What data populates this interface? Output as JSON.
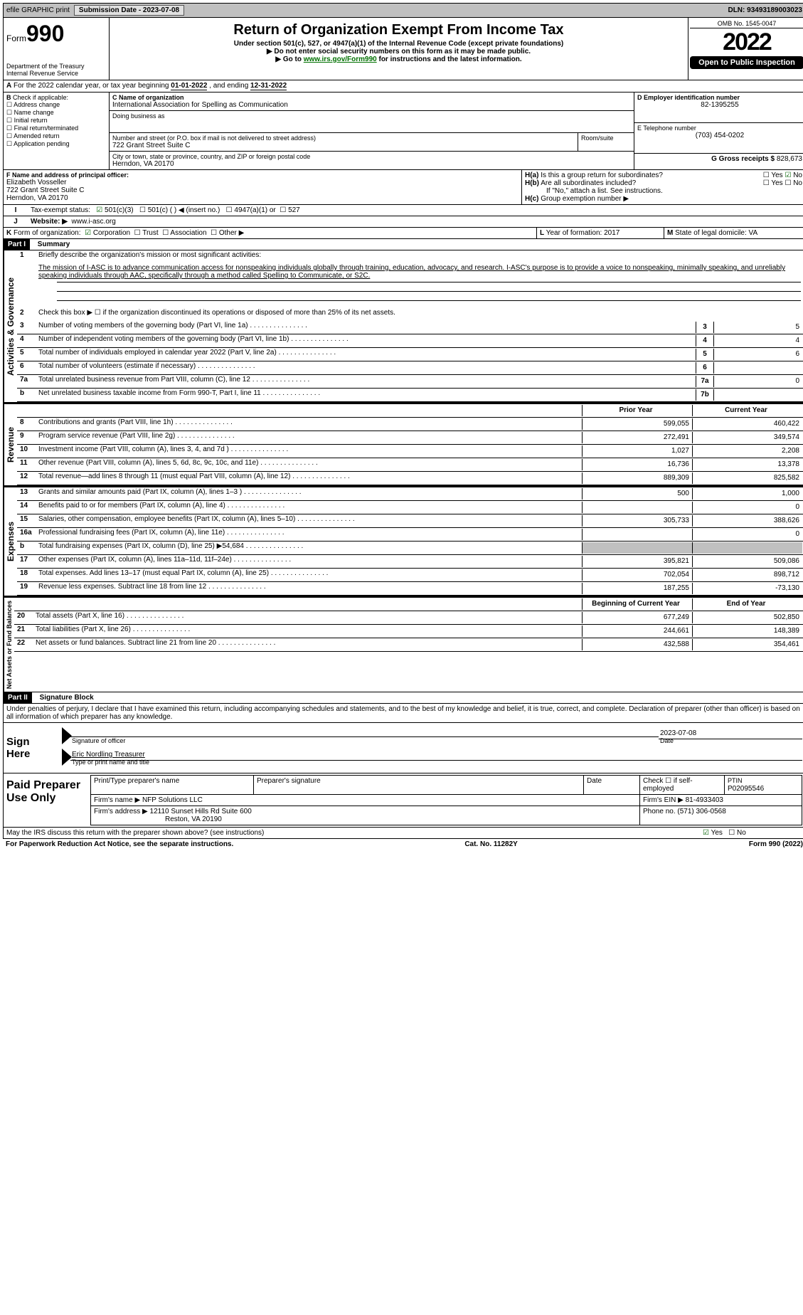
{
  "topbar": {
    "efile": "efile GRAPHIC print",
    "submission_label": "Submission Date - 2023-07-08",
    "dln": "DLN: 93493189003023"
  },
  "header": {
    "form_word": "Form",
    "form_num": "990",
    "title": "Return of Organization Exempt From Income Tax",
    "subtitle": "Under section 501(c), 527, or 4947(a)(1) of the Internal Revenue Code (except private foundations)",
    "warn": "Do not enter social security numbers on this form as it may be made public.",
    "goto_pre": "Go to ",
    "goto_link": "www.irs.gov/Form990",
    "goto_post": " for instructions and the latest information.",
    "dept1": "Department of the Treasury",
    "dept2": "Internal Revenue Service",
    "omb": "OMB No. 1545-0047",
    "year": "2022",
    "open": "Open to Public Inspection"
  },
  "A": {
    "text_pre": "For the 2022 calendar year, or tax year beginning ",
    "begin": "01-01-2022",
    "mid": " , and ending ",
    "end": "12-31-2022"
  },
  "B": {
    "label": "Check if applicable:",
    "items": [
      "Address change",
      "Name change",
      "Initial return",
      "Final return/terminated",
      "Amended return",
      "Application pending"
    ]
  },
  "C": {
    "name_label": "C Name of organization",
    "name": "International Association for Spelling as Communication",
    "dba_label": "Doing business as",
    "street_label": "Number and street (or P.O. box if mail is not delivered to street address)",
    "room_label": "Room/suite",
    "street": "722 Grant Street Suite C",
    "city_label": "City or town, state or province, country, and ZIP or foreign postal code",
    "city": "Herndon, VA  20170"
  },
  "D": {
    "label": "D Employer identification number",
    "val": "82-1395255"
  },
  "E": {
    "label": "E Telephone number",
    "val": "(703) 454-0202"
  },
  "G": {
    "label": "G Gross receipts $",
    "val": "828,673"
  },
  "F": {
    "label": "F Name and address of principal officer:",
    "name": "Elizabeth Vosseller",
    "addr1": "722 Grant Street Suite C",
    "addr2": "Herndon, VA  20170"
  },
  "H": {
    "a": "Is this a group return for subordinates?",
    "a_yes": "Yes",
    "a_no": "No",
    "b": "Are all subordinates included?",
    "b_note": "If \"No,\" attach a list. See instructions.",
    "c": "Group exemption number ▶"
  },
  "I": {
    "label": "Tax-exempt status:",
    "o1": "501(c)(3)",
    "o2": "501(c) (  ) ◀ (insert no.)",
    "o3": "4947(a)(1) or",
    "o4": "527"
  },
  "J": {
    "label": "Website: ▶",
    "val": "www.i-asc.org"
  },
  "K": {
    "label": "Form of organization:",
    "corp": "Corporation",
    "trust": "Trust",
    "assoc": "Association",
    "other": "Other ▶"
  },
  "L": {
    "label": "Year of formation:",
    "val": "2017"
  },
  "M": {
    "label": "State of legal domicile:",
    "val": "VA"
  },
  "part1": {
    "hdr": "Part I",
    "title": "Summary",
    "l1_label": "Briefly describe the organization's mission or most significant activities:",
    "l1_text": "The mission of I-ASC is to advance communication access for nonspeaking individuals globally through training, education, advocacy, and research. I-ASC's purpose is to provide a voice to nonspeaking, minimally speaking, and unreliably speaking individuals through AAC, specifically through a method called Spelling to Communicate, or S2C.",
    "l2": "Check this box ▶ ☐ if the organization discontinued its operations or disposed of more than 25% of its net assets.",
    "lines_gov": [
      {
        "n": "3",
        "d": "Number of voting members of the governing body (Part VI, line 1a)",
        "box": "3",
        "v": "5"
      },
      {
        "n": "4",
        "d": "Number of independent voting members of the governing body (Part VI, line 1b)",
        "box": "4",
        "v": "4"
      },
      {
        "n": "5",
        "d": "Total number of individuals employed in calendar year 2022 (Part V, line 2a)",
        "box": "5",
        "v": "6"
      },
      {
        "n": "6",
        "d": "Total number of volunteers (estimate if necessary)",
        "box": "6",
        "v": ""
      },
      {
        "n": "7a",
        "d": "Total unrelated business revenue from Part VIII, column (C), line 12",
        "box": "7a",
        "v": "0"
      },
      {
        "n": "b",
        "d": "Net unrelated business taxable income from Form 990-T, Part I, line 11",
        "box": "7b",
        "v": ""
      }
    ],
    "col_prior": "Prior Year",
    "col_curr": "Current Year",
    "revenue": [
      {
        "n": "8",
        "d": "Contributions and grants (Part VIII, line 1h)",
        "p": "599,055",
        "c": "460,422"
      },
      {
        "n": "9",
        "d": "Program service revenue (Part VIII, line 2g)",
        "p": "272,491",
        "c": "349,574"
      },
      {
        "n": "10",
        "d": "Investment income (Part VIII, column (A), lines 3, 4, and 7d )",
        "p": "1,027",
        "c": "2,208"
      },
      {
        "n": "11",
        "d": "Other revenue (Part VIII, column (A), lines 5, 6d, 8c, 9c, 10c, and 11e)",
        "p": "16,736",
        "c": "13,378"
      },
      {
        "n": "12",
        "d": "Total revenue—add lines 8 through 11 (must equal Part VIII, column (A), line 12)",
        "p": "889,309",
        "c": "825,582"
      }
    ],
    "expenses": [
      {
        "n": "13",
        "d": "Grants and similar amounts paid (Part IX, column (A), lines 1–3 )",
        "p": "500",
        "c": "1,000"
      },
      {
        "n": "14",
        "d": "Benefits paid to or for members (Part IX, column (A), line 4)",
        "p": "",
        "c": "0"
      },
      {
        "n": "15",
        "d": "Salaries, other compensation, employee benefits (Part IX, column (A), lines 5–10)",
        "p": "305,733",
        "c": "388,626"
      },
      {
        "n": "16a",
        "d": "Professional fundraising fees (Part IX, column (A), line 11e)",
        "p": "",
        "c": "0"
      },
      {
        "n": "b",
        "d": "Total fundraising expenses (Part IX, column (D), line 25) ▶54,684",
        "p": "",
        "c": "",
        "shade": true
      },
      {
        "n": "17",
        "d": "Other expenses (Part IX, column (A), lines 11a–11d, 11f–24e)",
        "p": "395,821",
        "c": "509,086"
      },
      {
        "n": "18",
        "d": "Total expenses. Add lines 13–17 (must equal Part IX, column (A), line 25)",
        "p": "702,054",
        "c": "898,712"
      },
      {
        "n": "19",
        "d": "Revenue less expenses. Subtract line 18 from line 12",
        "p": "187,255",
        "c": "-73,130"
      }
    ],
    "col_begin": "Beginning of Current Year",
    "col_end": "End of Year",
    "netassets": [
      {
        "n": "20",
        "d": "Total assets (Part X, line 16)",
        "p": "677,249",
        "c": "502,850"
      },
      {
        "n": "21",
        "d": "Total liabilities (Part X, line 26)",
        "p": "244,661",
        "c": "148,389"
      },
      {
        "n": "22",
        "d": "Net assets or fund balances. Subtract line 21 from line 20",
        "p": "432,588",
        "c": "354,461"
      }
    ]
  },
  "vert": {
    "gov": "Activities & Governance",
    "rev": "Revenue",
    "exp": "Expenses",
    "net": "Net Assets or Fund Balances"
  },
  "part2": {
    "hdr": "Part II",
    "title": "Signature Block",
    "decl": "Under penalties of perjury, I declare that I have examined this return, including accompanying schedules and statements, and to the best of my knowledge and belief, it is true, correct, and complete. Declaration of preparer (other than officer) is based on all information of which preparer has any knowledge.",
    "sign_here": "Sign Here",
    "sig_officer": "Signature of officer",
    "sig_date": "Date",
    "sig_date_val": "2023-07-08",
    "officer_name": "Eric Nordling  Treasurer",
    "type_name": "Type or print name and title",
    "paid": "Paid Preparer Use Only",
    "p_name_l": "Print/Type preparer's name",
    "p_sig_l": "Preparer's signature",
    "p_date_l": "Date",
    "p_check": "Check ☐ if self-employed",
    "ptin_l": "PTIN",
    "ptin": "P02095546",
    "firm_name_l": "Firm's name    ▶",
    "firm_name": "NFP Solutions LLC",
    "firm_ein_l": "Firm's EIN ▶",
    "firm_ein": "81-4933403",
    "firm_addr_l": "Firm's address ▶",
    "firm_addr1": "12110 Sunset Hills Rd Suite 600",
    "firm_addr2": "Reston, VA  20190",
    "phone_l": "Phone no.",
    "phone": "(571) 306-0568",
    "discuss": "May the IRS discuss this return with the preparer shown above? (see instructions)",
    "yes": "Yes",
    "no": "No"
  },
  "footer": {
    "left": "For Paperwork Reduction Act Notice, see the separate instructions.",
    "mid": "Cat. No. 11282Y",
    "right": "Form 990 (2022)"
  }
}
